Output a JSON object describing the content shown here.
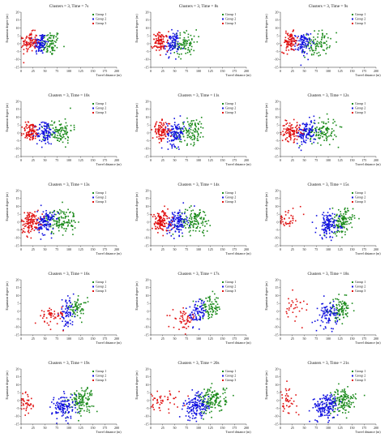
{
  "figure": {
    "legend_labels": [
      "Group 1",
      "Group 2",
      "Group 3"
    ],
    "colors": {
      "group1": "#1a8a1a",
      "group2": "#1010e0",
      "group3": "#e01010"
    },
    "xlabel": "Travel distance (m)",
    "ylabel": "Expansion degree (m)"
  },
  "chart_data": [
    {
      "type": "scatter",
      "title": "Clusters = 3, Time = 7s",
      "xlabel": "Travel distance (m)",
      "ylabel": "Expansion degree (m)",
      "xlim": [
        0,
        200
      ],
      "ylim": [
        -15,
        20
      ],
      "xticks": [
        0,
        25,
        50,
        75,
        100,
        125,
        150,
        175,
        200
      ],
      "yticks": [
        -15,
        -10,
        -5,
        0,
        5,
        10,
        15,
        20
      ],
      "legend": "top-right",
      "series": [
        {
          "name": "Group 1",
          "color": "#1a8a1a",
          "center": [
            62,
            0
          ],
          "spread": [
            10,
            4
          ],
          "count": 80
        },
        {
          "name": "Group 2",
          "color": "#1010e0",
          "center": [
            40,
            0
          ],
          "spread": [
            7,
            3.5
          ],
          "count": 90
        },
        {
          "name": "Group 3",
          "color": "#e01010",
          "center": [
            18,
            1
          ],
          "spread": [
            8,
            3
          ],
          "count": 90
        }
      ]
    },
    {
      "type": "scatter",
      "title": "Clusters = 3, Time = 8s",
      "xlabel": "Travel distance (m)",
      "ylabel": "Expansion degree (m)",
      "xlim": [
        0,
        200
      ],
      "ylim": [
        -15,
        20
      ],
      "xticks": [
        0,
        25,
        50,
        75,
        100,
        125,
        150,
        175,
        200
      ],
      "yticks": [
        -15,
        -10,
        -5,
        0,
        5,
        10,
        15,
        20
      ],
      "legend": "top-right",
      "series": [
        {
          "name": "Group 1",
          "color": "#1a8a1a",
          "center": [
            72,
            0
          ],
          "spread": [
            12,
            4
          ],
          "count": 90
        },
        {
          "name": "Group 2",
          "color": "#1010e0",
          "center": [
            45,
            0
          ],
          "spread": [
            8,
            3.5
          ],
          "count": 90
        },
        {
          "name": "Group 3",
          "color": "#e01010",
          "center": [
            20,
            1
          ],
          "spread": [
            8,
            3
          ],
          "count": 90
        }
      ]
    },
    {
      "type": "scatter",
      "title": "Clusters = 3, Time = 9s",
      "xlabel": "Travel distance (m)",
      "ylabel": "Expansion degree (m)",
      "xlim": [
        0,
        200
      ],
      "ylim": [
        -15,
        20
      ],
      "xticks": [
        0,
        25,
        50,
        75,
        100,
        125,
        150,
        175,
        200
      ],
      "yticks": [
        -15,
        -10,
        -5,
        0,
        5,
        10,
        15,
        20
      ],
      "legend": "top-right",
      "series": [
        {
          "name": "Group 1",
          "color": "#1a8a1a",
          "center": [
            78,
            0
          ],
          "spread": [
            13,
            4
          ],
          "count": 90
        },
        {
          "name": "Group 2",
          "color": "#1010e0",
          "center": [
            47,
            0
          ],
          "spread": [
            8,
            3.5
          ],
          "count": 90
        },
        {
          "name": "Group 3",
          "color": "#e01010",
          "center": [
            20,
            1
          ],
          "spread": [
            8,
            3
          ],
          "count": 90
        }
      ]
    },
    {
      "type": "scatter",
      "title": "Clusters = 3, Time = 10s",
      "xlabel": "Travel distance (m)",
      "ylabel": "Expansion degree (m)",
      "xlim": [
        0,
        200
      ],
      "ylim": [
        -15,
        20
      ],
      "xticks": [
        0,
        25,
        50,
        75,
        100,
        125,
        150,
        175,
        200
      ],
      "yticks": [
        -15,
        -10,
        -5,
        0,
        5,
        10,
        15,
        20
      ],
      "legend": "top-right",
      "series": [
        {
          "name": "Group 1",
          "color": "#1a8a1a",
          "center": [
            80,
            1
          ],
          "spread": [
            14,
            4
          ],
          "count": 100
        },
        {
          "name": "Group 2",
          "color": "#1010e0",
          "center": [
            50,
            0
          ],
          "spread": [
            9,
            4
          ],
          "count": 100
        },
        {
          "name": "Group 3",
          "color": "#e01010",
          "center": [
            20,
            1
          ],
          "spread": [
            9,
            3
          ],
          "count": 90
        }
      ]
    },
    {
      "type": "scatter",
      "title": "Clusters = 3, Time = 11s",
      "xlabel": "Travel distance (m)",
      "ylabel": "Expansion degree (m)",
      "xlim": [
        0,
        200
      ],
      "ylim": [
        -15,
        20
      ],
      "xticks": [
        0,
        25,
        50,
        75,
        100,
        125,
        150,
        175,
        200
      ],
      "yticks": [
        -15,
        -10,
        -5,
        0,
        5,
        10,
        15,
        20
      ],
      "legend": "top-right",
      "series": [
        {
          "name": "Group 1",
          "color": "#1a8a1a",
          "center": [
            85,
            1
          ],
          "spread": [
            15,
            4
          ],
          "count": 110
        },
        {
          "name": "Group 2",
          "color": "#1010e0",
          "center": [
            52,
            0
          ],
          "spread": [
            9,
            4
          ],
          "count": 110
        },
        {
          "name": "Group 3",
          "color": "#e01010",
          "center": [
            22,
            1
          ],
          "spread": [
            9,
            3
          ],
          "count": 100
        }
      ]
    },
    {
      "type": "scatter",
      "title": "Clusters = 3, Time = 12s",
      "xlabel": "Travel distance (m)",
      "ylabel": "Expansion degree (m)",
      "xlim": [
        0,
        200
      ],
      "ylim": [
        -15,
        20
      ],
      "xticks": [
        0,
        25,
        50,
        75,
        100,
        125,
        150,
        175,
        200
      ],
      "yticks": [
        -15,
        -10,
        -5,
        0,
        5,
        10,
        15,
        20
      ],
      "legend": "top-right",
      "series": [
        {
          "name": "Group 1",
          "color": "#1a8a1a",
          "center": [
            88,
            1
          ],
          "spread": [
            16,
            4
          ],
          "count": 110
        },
        {
          "name": "Group 2",
          "color": "#1010e0",
          "center": [
            55,
            0
          ],
          "spread": [
            10,
            4
          ],
          "count": 110
        },
        {
          "name": "Group 3",
          "color": "#e01010",
          "center": [
            22,
            1
          ],
          "spread": [
            10,
            3
          ],
          "count": 100
        }
      ]
    },
    {
      "type": "scatter",
      "title": "Clusters = 3, Time = 13s",
      "xlabel": "Travel distance (m)",
      "ylabel": "Expansion degree (m)",
      "xlim": [
        0,
        200
      ],
      "ylim": [
        -15,
        20
      ],
      "xticks": [
        0,
        25,
        50,
        75,
        100,
        125,
        150,
        175,
        200
      ],
      "yticks": [
        -15,
        -10,
        -5,
        0,
        5,
        10,
        15,
        20
      ],
      "legend": "top-right",
      "series": [
        {
          "name": "Group 1",
          "color": "#1a8a1a",
          "center": [
            85,
            1
          ],
          "spread": [
            16,
            4
          ],
          "count": 120
        },
        {
          "name": "Group 2",
          "color": "#1010e0",
          "center": [
            52,
            0
          ],
          "spread": [
            9,
            4
          ],
          "count": 120
        },
        {
          "name": "Group 3",
          "color": "#e01010",
          "center": [
            20,
            0
          ],
          "spread": [
            10,
            3.5
          ],
          "count": 120
        }
      ]
    },
    {
      "type": "scatter",
      "title": "Clusters = 3, Time = 14s",
      "xlabel": "Travel distance (m)",
      "ylabel": "Expansion degree (m)",
      "xlim": [
        0,
        200
      ],
      "ylim": [
        -15,
        20
      ],
      "xticks": [
        0,
        25,
        50,
        75,
        100,
        125,
        150,
        175,
        200
      ],
      "yticks": [
        -15,
        -10,
        -5,
        0,
        5,
        10,
        15,
        20
      ],
      "legend": "top-right",
      "series": [
        {
          "name": "Group 1",
          "color": "#1a8a1a",
          "center": [
            92,
            1
          ],
          "spread": [
            17,
            4
          ],
          "count": 120
        },
        {
          "name": "Group 2",
          "color": "#1010e0",
          "center": [
            55,
            0
          ],
          "spread": [
            10,
            4
          ],
          "count": 120
        },
        {
          "name": "Group 3",
          "color": "#e01010",
          "center": [
            22,
            0
          ],
          "spread": [
            10,
            3.5
          ],
          "count": 120
        }
      ]
    },
    {
      "type": "scatter",
      "title": "Clusters = 3, Time = 15s",
      "xlabel": "Travel distance (m)",
      "ylabel": "Expansion degree (m)",
      "xlim": [
        0,
        200
      ],
      "ylim": [
        -15,
        20
      ],
      "xticks": [
        0,
        25,
        50,
        75,
        100,
        125,
        150,
        175,
        200
      ],
      "yticks": [
        -15,
        -10,
        -5,
        0,
        5,
        10,
        15,
        20
      ],
      "legend": "top-right",
      "series": [
        {
          "name": "Group 1",
          "color": "#1a8a1a",
          "center": [
            128,
            0
          ],
          "spread": [
            12,
            4
          ],
          "count": 130
        },
        {
          "name": "Group 2",
          "color": "#1010e0",
          "center": [
            100,
            -2
          ],
          "spread": [
            12,
            4
          ],
          "count": 120
        },
        {
          "name": "Group 3",
          "color": "#e01010",
          "center": [
            15,
            2
          ],
          "spread": [
            14,
            3
          ],
          "count": 40
        }
      ]
    },
    {
      "type": "scatter",
      "title": "Clusters = 3, Time = 16s",
      "xlabel": "Travel distance (m)",
      "ylabel": "Expansion degree (m)",
      "xlim": [
        0,
        200
      ],
      "ylim": [
        -15,
        20
      ],
      "xticks": [
        0,
        25,
        50,
        75,
        100,
        125,
        150,
        175,
        200
      ],
      "yticks": [
        -15,
        -10,
        -5,
        0,
        5,
        10,
        15,
        20
      ],
      "legend": "top-right",
      "series": [
        {
          "name": "Group 1",
          "color": "#1a8a1a",
          "center": [
            118,
            2
          ],
          "spread": [
            10,
            3
          ],
          "count": 60
        },
        {
          "name": "Group 2",
          "color": "#1010e0",
          "center": [
            95,
            -1
          ],
          "spread": [
            8,
            4
          ],
          "count": 70
        },
        {
          "name": "Group 3",
          "color": "#e01010",
          "center": [
            65,
            -3
          ],
          "spread": [
            14,
            3
          ],
          "count": 50
        }
      ]
    },
    {
      "type": "scatter",
      "title": "Clusters = 3, Time = 17s",
      "xlabel": "Travel distance (m)",
      "ylabel": "Expansion degree (m)",
      "xlim": [
        0,
        200
      ],
      "ylim": [
        -15,
        20
      ],
      "xticks": [
        0,
        25,
        50,
        75,
        100,
        125,
        150,
        175,
        200
      ],
      "yticks": [
        -15,
        -10,
        -5,
        0,
        5,
        10,
        15,
        20
      ],
      "legend": "top-right",
      "series": [
        {
          "name": "Group 1",
          "color": "#1a8a1a",
          "center": [
            125,
            2
          ],
          "spread": [
            12,
            3.5
          ],
          "count": 80
        },
        {
          "name": "Group 2",
          "color": "#1010e0",
          "center": [
            98,
            -1
          ],
          "spread": [
            9,
            4
          ],
          "count": 80
        },
        {
          "name": "Group 3",
          "color": "#e01010",
          "center": [
            70,
            -5
          ],
          "spread": [
            12,
            3
          ],
          "count": 50
        }
      ]
    },
    {
      "type": "scatter",
      "title": "Clusters = 3, Time = 18s",
      "xlabel": "Travel distance (m)",
      "ylabel": "Expansion degree (m)",
      "xlim": [
        0,
        200
      ],
      "ylim": [
        -15,
        20
      ],
      "xticks": [
        0,
        25,
        50,
        75,
        100,
        125,
        150,
        175,
        200
      ],
      "yticks": [
        -15,
        -10,
        -5,
        0,
        5,
        10,
        15,
        20
      ],
      "legend": "top-right",
      "series": [
        {
          "name": "Group 1",
          "color": "#1a8a1a",
          "center": [
            125,
            1
          ],
          "spread": [
            11,
            3.5
          ],
          "count": 90
        },
        {
          "name": "Group 2",
          "color": "#1010e0",
          "center": [
            100,
            -2
          ],
          "spread": [
            10,
            4
          ],
          "count": 90
        },
        {
          "name": "Group 3",
          "color": "#e01010",
          "center": [
            30,
            3
          ],
          "spread": [
            15,
            4
          ],
          "count": 30
        }
      ]
    },
    {
      "type": "scatter",
      "title": "Clusters = 3, Time = 19s",
      "xlabel": "Travel distance (m)",
      "ylabel": "Expansion degree (m)",
      "xlim": [
        0,
        200
      ],
      "ylim": [
        -15,
        20
      ],
      "xticks": [
        0,
        25,
        50,
        75,
        100,
        125,
        150,
        175,
        200
      ],
      "yticks": [
        -15,
        -10,
        -5,
        0,
        5,
        10,
        15,
        20
      ],
      "legend": "top-right",
      "series": [
        {
          "name": "Group 1",
          "color": "#1a8a1a",
          "center": [
            125,
            0
          ],
          "spread": [
            13,
            4
          ],
          "count": 120
        },
        {
          "name": "Group 2",
          "color": "#1010e0",
          "center": [
            90,
            -4
          ],
          "spread": [
            12,
            4
          ],
          "count": 120
        },
        {
          "name": "Group 3",
          "color": "#e01010",
          "center": [
            12,
            -2
          ],
          "spread": [
            8,
            4
          ],
          "count": 40
        }
      ]
    },
    {
      "type": "scatter",
      "title": "Clusters = 3, Time = 20s",
      "xlabel": "Travel distance (m)",
      "ylabel": "Expansion degree (m)",
      "xlim": [
        0,
        200
      ],
      "ylim": [
        -15,
        20
      ],
      "xticks": [
        0,
        25,
        50,
        75,
        100,
        125,
        150,
        175,
        200
      ],
      "yticks": [
        -15,
        -10,
        -5,
        0,
        5,
        10,
        15,
        20
      ],
      "legend": "top-right",
      "series": [
        {
          "name": "Group 1",
          "color": "#1a8a1a",
          "center": [
            130,
            0
          ],
          "spread": [
            14,
            4
          ],
          "count": 140
        },
        {
          "name": "Group 2",
          "color": "#1010e0",
          "center": [
            95,
            -4
          ],
          "spread": [
            13,
            4
          ],
          "count": 140
        },
        {
          "name": "Group 3",
          "color": "#e01010",
          "center": [
            25,
            -1
          ],
          "spread": [
            18,
            3
          ],
          "count": 45
        }
      ]
    },
    {
      "type": "scatter",
      "title": "Clusters = 3, Time = 21s",
      "xlabel": "Travel distance (m)",
      "ylabel": "Expansion degree (m)",
      "xlim": [
        0,
        200
      ],
      "ylim": [
        -15,
        20
      ],
      "xticks": [
        0,
        25,
        50,
        75,
        100,
        125,
        150,
        175,
        200
      ],
      "yticks": [
        -15,
        -10,
        -5,
        0,
        5,
        10,
        15,
        20
      ],
      "legend": "top-right",
      "series": [
        {
          "name": "Group 1",
          "color": "#1a8a1a",
          "center": [
            130,
            0
          ],
          "spread": [
            14,
            4
          ],
          "count": 140
        },
        {
          "name": "Group 2",
          "color": "#1010e0",
          "center": [
            95,
            -4
          ],
          "spread": [
            13,
            4
          ],
          "count": 150
        },
        {
          "name": "Group 3",
          "color": "#e01010",
          "center": [
            15,
            0
          ],
          "spread": [
            10,
            4
          ],
          "count": 40
        }
      ]
    }
  ]
}
